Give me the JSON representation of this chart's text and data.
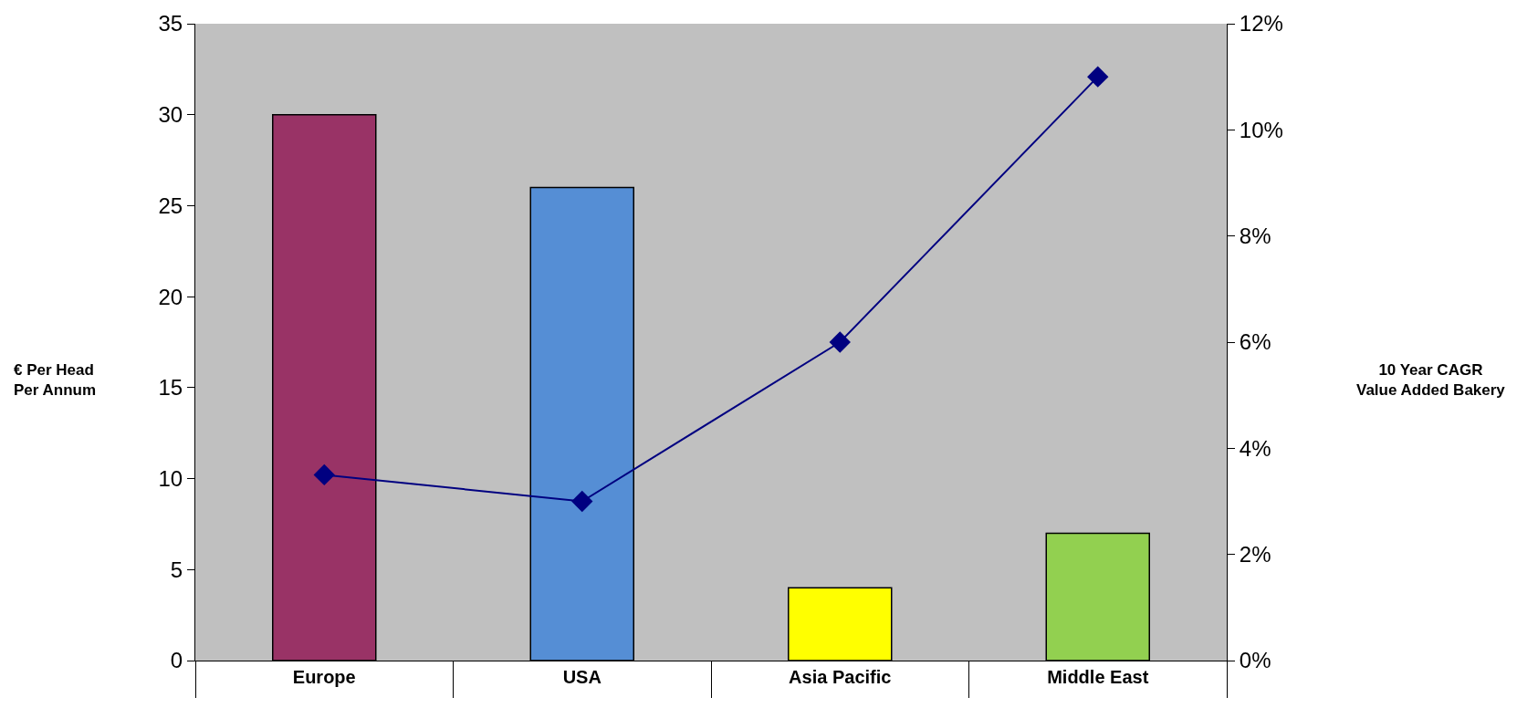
{
  "chart_data": {
    "type": "bar",
    "categories": [
      "Europe",
      "USA",
      "Asia Pacific",
      "Middle East"
    ],
    "series": [
      {
        "colors": [
          "#993366",
          "#558ed5",
          "#ffff00",
          "#92d050"
        ],
        "values": [
          30,
          26,
          4,
          7
        ]
      },
      {
        "type": "line",
        "axis": "y2",
        "color": "#000080",
        "values": [
          3.5,
          3,
          6,
          11
        ]
      }
    ],
    "annotations": [
      "€ Per Head\nPer Annum",
      "10 Year CAGR\nValue Added Bakery"
    ],
    "ylim": [
      0,
      35
    ],
    "yticks": [
      0,
      5,
      10,
      15,
      20,
      25,
      30,
      35
    ],
    "y2lim": [
      0,
      12
    ],
    "y2ticks": [
      {
        "value": 0,
        "label": "0%"
      },
      {
        "value": 2,
        "label": "2%"
      },
      {
        "value": 4,
        "label": "4%"
      },
      {
        "value": 6,
        "label": "6%"
      },
      {
        "value": 8,
        "label": "8%"
      },
      {
        "value": 10,
        "label": "10%"
      },
      {
        "value": 12,
        "label": "12%"
      }
    ],
    "marker": "diamond",
    "line_style": "solid"
  }
}
